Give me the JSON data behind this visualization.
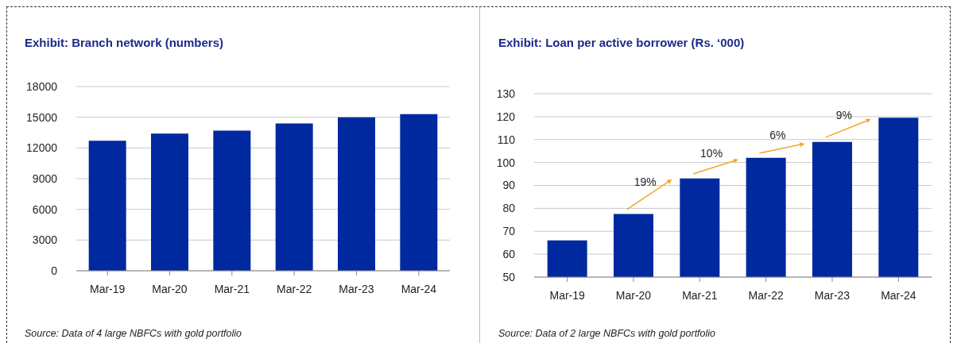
{
  "chart_data": [
    {
      "type": "bar",
      "title": "Exhibit: Branch network (numbers)",
      "categories": [
        "Mar-19",
        "Mar-20",
        "Mar-21",
        "Mar-22",
        "Mar-23",
        "Mar-24"
      ],
      "values": [
        12700,
        13400,
        13700,
        14400,
        15000,
        15300
      ],
      "color": "#0029a0",
      "ylim": [
        0,
        18000
      ],
      "yticks": [
        0,
        3000,
        6000,
        9000,
        12000,
        15000,
        18000
      ],
      "grid": "y",
      "annotations": [
        "Source: Data of 4 large NBFCs with gold portfolio"
      ]
    },
    {
      "type": "bar",
      "title": "Exhibit: Loan per active borrower (Rs. ‘000)",
      "categories": [
        "Mar-19",
        "Mar-20",
        "Mar-21",
        "Mar-22",
        "Mar-23",
        "Mar-24"
      ],
      "values": [
        66,
        77.5,
        93,
        102,
        109,
        119.5
      ],
      "color": "#0029a0",
      "ylim": [
        50,
        130
      ],
      "yticks": [
        50,
        60,
        70,
        80,
        90,
        100,
        110,
        120,
        130
      ],
      "grid": "y",
      "annotations": [
        "19%",
        "10%",
        "6%",
        "9%",
        "Source: Data of 2 large NBFCs with gold portfolio"
      ]
    }
  ]
}
